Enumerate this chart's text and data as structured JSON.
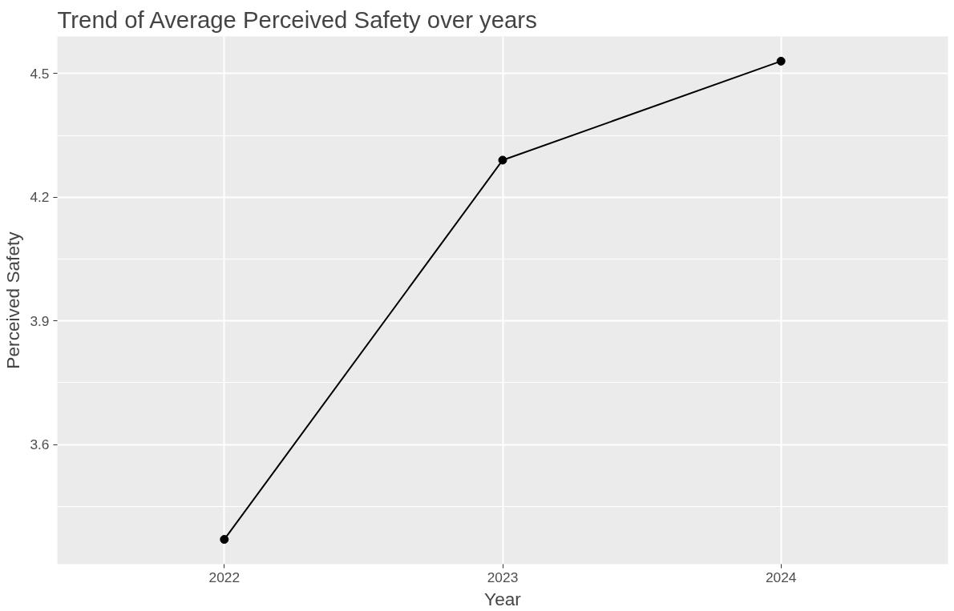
{
  "chart_data": {
    "type": "line",
    "title": "Trend of Average Perceived Safety over years",
    "xlabel": "Year",
    "ylabel": "Perceived Safety",
    "x": [
      2022,
      2023,
      2024
    ],
    "series": [
      {
        "color": "#000000",
        "values": [
          3.37,
          4.29,
          4.53
        ]
      }
    ],
    "xlim": [
      2021.4,
      2024.6
    ],
    "xticks": [
      2022,
      2023,
      2024
    ],
    "ylim": [
      3.31,
      4.59
    ],
    "yticks": [
      3.6,
      3.9,
      4.2,
      4.5
    ],
    "grid": true,
    "marker": "circle",
    "line_style": "solid"
  }
}
